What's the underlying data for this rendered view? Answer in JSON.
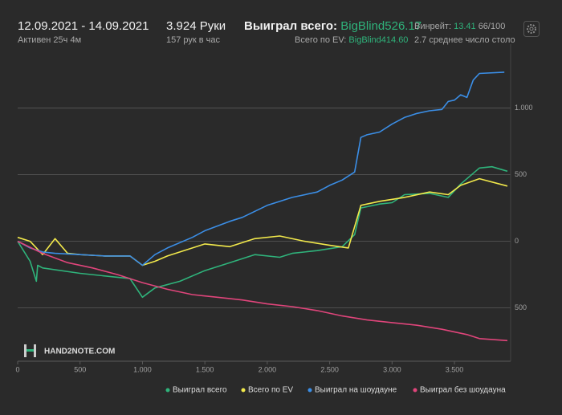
{
  "header": {
    "date_range": "12.09.2021 - 14.09.2021",
    "active": "Активен 25ч 4м",
    "hands": "3.924 Руки",
    "hands_per_hour": "157 рук в час",
    "won_label": "Выиграл всего:",
    "won_value": "BigBlind526.17",
    "ev_label": "Всего по EV:",
    "ev_value": "BigBlind414.60",
    "winrate_label": "Винрейт:",
    "winrate_value": "13.41",
    "winrate_sample": "66/100",
    "tables": "2.7 среднее число столо"
  },
  "logo": "HAND2NOTE.COM",
  "chart_data": {
    "type": "line",
    "xlim": [
      0,
      3950
    ],
    "ylim": [
      -900,
      1480
    ],
    "xticks": [
      0,
      500,
      {
        "value": 1000,
        "label": "1.000"
      },
      {
        "value": 1500,
        "label": "1.500"
      },
      {
        "value": 2000,
        "label": "2.000"
      },
      {
        "value": 2500,
        "label": "2.500"
      },
      {
        "value": 3000,
        "label": "3.000"
      },
      {
        "value": 3500,
        "label": "3.500"
      }
    ],
    "yticks": [
      {
        "value": -500,
        "label": "500"
      },
      0,
      500,
      {
        "value": 1000,
        "label": "1.000"
      }
    ],
    "grid": true,
    "series": [
      {
        "name": "Выиграл всего",
        "color": "#2fb37b",
        "x": [
          0,
          100,
          150,
          160,
          200,
          500,
          700,
          900,
          1000,
          1100,
          1300,
          1500,
          1700,
          1900,
          2100,
          2200,
          2400,
          2600,
          2700,
          2750,
          2900,
          3000,
          3100,
          3300,
          3450,
          3550,
          3700,
          3800,
          3924
        ],
        "values": [
          0,
          -150,
          -300,
          -180,
          -200,
          -240,
          -260,
          -280,
          -420,
          -350,
          -300,
          -220,
          -160,
          -100,
          -120,
          -90,
          -70,
          -40,
          50,
          250,
          280,
          290,
          350,
          360,
          330,
          430,
          550,
          560,
          526
        ]
      },
      {
        "name": "Всего по EV",
        "color": "#f2e94b",
        "x": [
          0,
          100,
          200,
          300,
          400,
          500,
          700,
          900,
          1000,
          1100,
          1200,
          1500,
          1700,
          1900,
          2100,
          2300,
          2500,
          2650,
          2750,
          2900,
          3100,
          3300,
          3450,
          3550,
          3700,
          3924
        ],
        "values": [
          30,
          0,
          -100,
          20,
          -90,
          -100,
          -110,
          -110,
          -180,
          -150,
          -110,
          -20,
          -40,
          20,
          40,
          0,
          -30,
          -50,
          270,
          300,
          330,
          370,
          350,
          420,
          470,
          414.6
        ]
      },
      {
        "name": "Выиграл на шоудауне",
        "color": "#3b8ee6",
        "x": [
          0,
          100,
          200,
          300,
          500,
          700,
          900,
          1000,
          1100,
          1200,
          1400,
          1500,
          1700,
          1800,
          2000,
          2200,
          2400,
          2500,
          2600,
          2700,
          2750,
          2800,
          2900,
          3000,
          3100,
          3200,
          3300,
          3400,
          3450,
          3500,
          3550,
          3600,
          3650,
          3700,
          3900
        ],
        "values": [
          0,
          -50,
          -80,
          -90,
          -100,
          -110,
          -110,
          -180,
          -100,
          -50,
          30,
          80,
          150,
          180,
          270,
          330,
          370,
          420,
          460,
          520,
          780,
          800,
          820,
          880,
          930,
          960,
          980,
          990,
          1050,
          1060,
          1100,
          1080,
          1210,
          1260,
          1270
        ]
      },
      {
        "name": "Выиграл без шоудауна",
        "color": "#e0457b",
        "x": [
          0,
          200,
          400,
          600,
          800,
          1000,
          1200,
          1400,
          1600,
          1800,
          2000,
          2200,
          2400,
          2600,
          2800,
          3000,
          3200,
          3400,
          3600,
          3700,
          3924
        ],
        "values": [
          0,
          -90,
          -160,
          -200,
          -250,
          -310,
          -360,
          -400,
          -420,
          -440,
          -470,
          -490,
          -520,
          -560,
          -590,
          -610,
          -630,
          -660,
          -700,
          -730,
          -745
        ]
      }
    ]
  }
}
